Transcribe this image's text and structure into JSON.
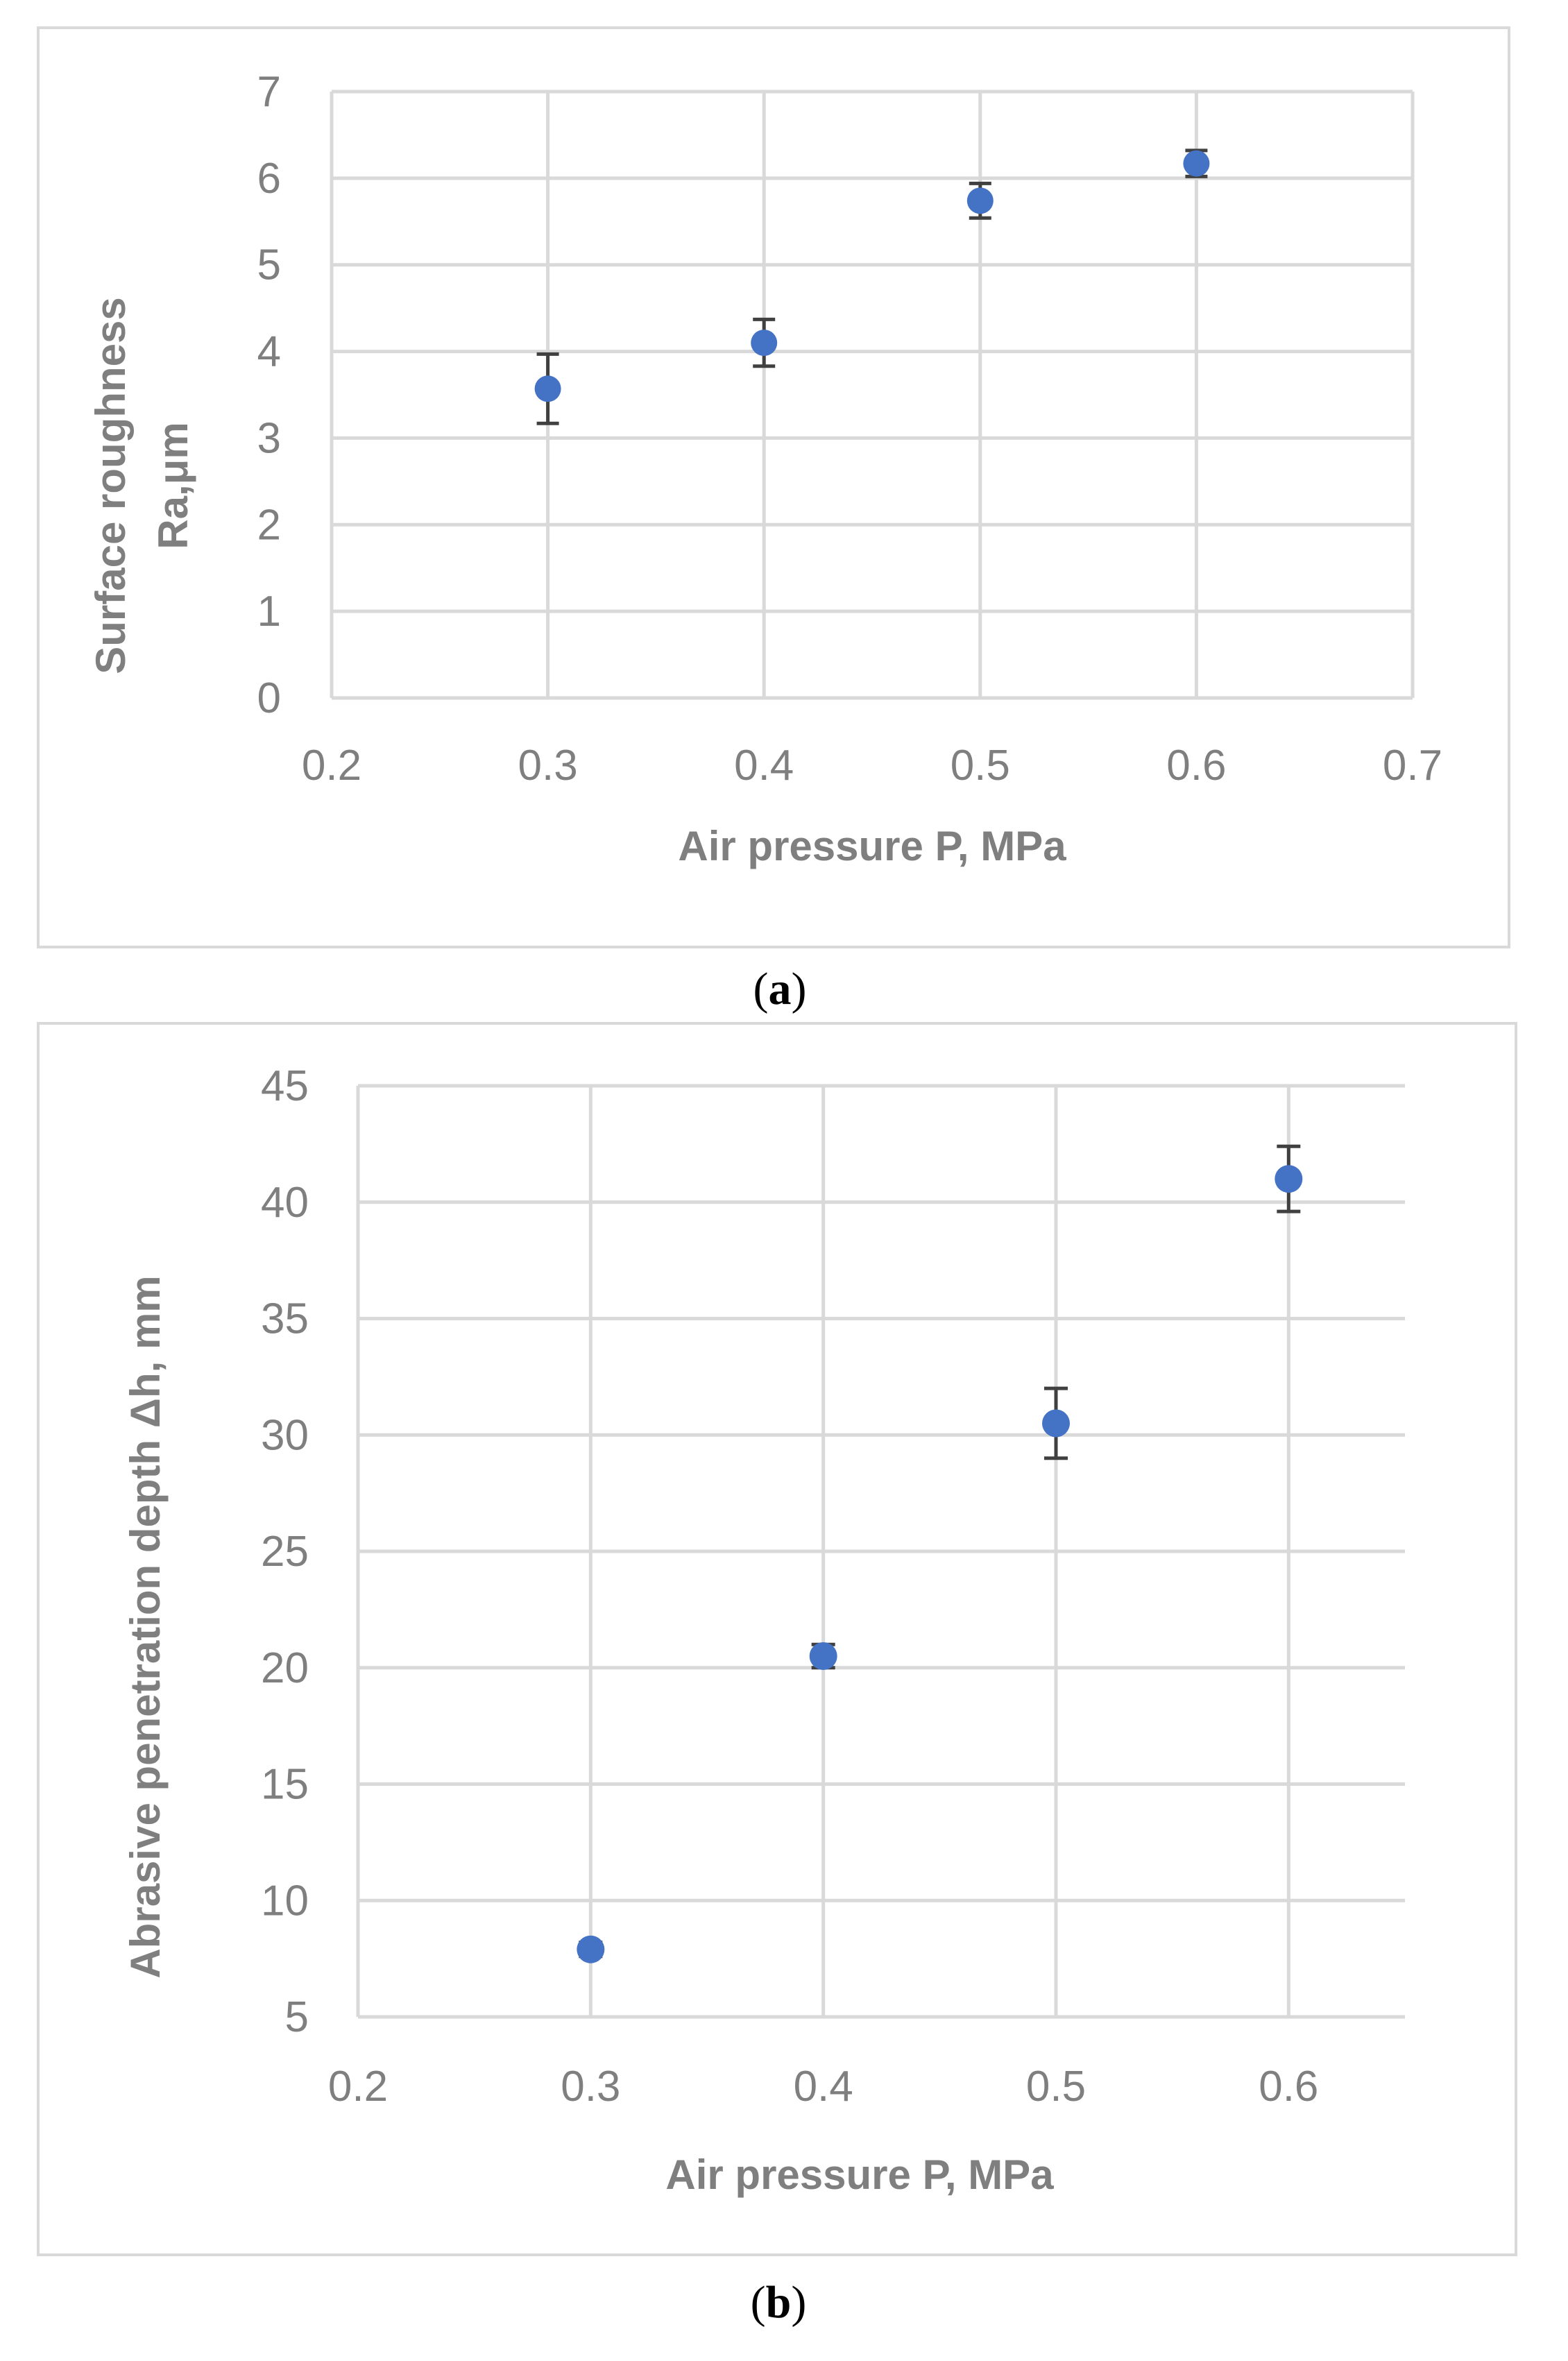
{
  "colors": {
    "marker": "#4472C4",
    "error_bar": "#404040",
    "grid": "#d9d9d9",
    "frame": "#d9d9d9",
    "text": "#7f7f7f"
  },
  "chart_data": [
    {
      "type": "scatter",
      "panel_label": "a",
      "title": "",
      "xlabel": "Air pressure P, MPa",
      "ylabel_lines": [
        "Surface roughness",
        "Ra,μm"
      ],
      "xlim": [
        0.2,
        0.7
      ],
      "ylim": [
        0,
        7
      ],
      "x_ticks": [
        "0.2",
        "0.3",
        "0.4",
        "0.5",
        "0.6",
        "0.7"
      ],
      "y_ticks": [
        "0",
        "1",
        "2",
        "3",
        "4",
        "5",
        "6",
        "7"
      ],
      "grid": true,
      "series": [
        {
          "name": "Ra",
          "x": [
            0.3,
            0.4,
            0.5,
            0.6
          ],
          "y": [
            3.57,
            4.1,
            5.74,
            6.17
          ],
          "error": [
            0.4,
            0.27,
            0.2,
            0.15
          ]
        }
      ]
    },
    {
      "type": "scatter",
      "panel_label": "b",
      "title": "",
      "xlabel": "Air pressure P, MPa",
      "ylabel_lines": [
        "Abrasive penetration depth Δh, mm"
      ],
      "xlim": [
        0.2,
        0.65
      ],
      "ylim": [
        5,
        45
      ],
      "x_ticks": [
        "0.2",
        "0.3",
        "0.4",
        "0.5",
        "0.6"
      ],
      "y_ticks": [
        "5",
        "10",
        "15",
        "20",
        "25",
        "30",
        "35",
        "40",
        "45"
      ],
      "grid": true,
      "series": [
        {
          "name": "Δh",
          "x": [
            0.3,
            0.4,
            0.5,
            0.6
          ],
          "y": [
            7.9,
            20.5,
            30.5,
            41.0
          ],
          "error": [
            0.3,
            0.5,
            1.5,
            1.4
          ]
        }
      ]
    }
  ]
}
